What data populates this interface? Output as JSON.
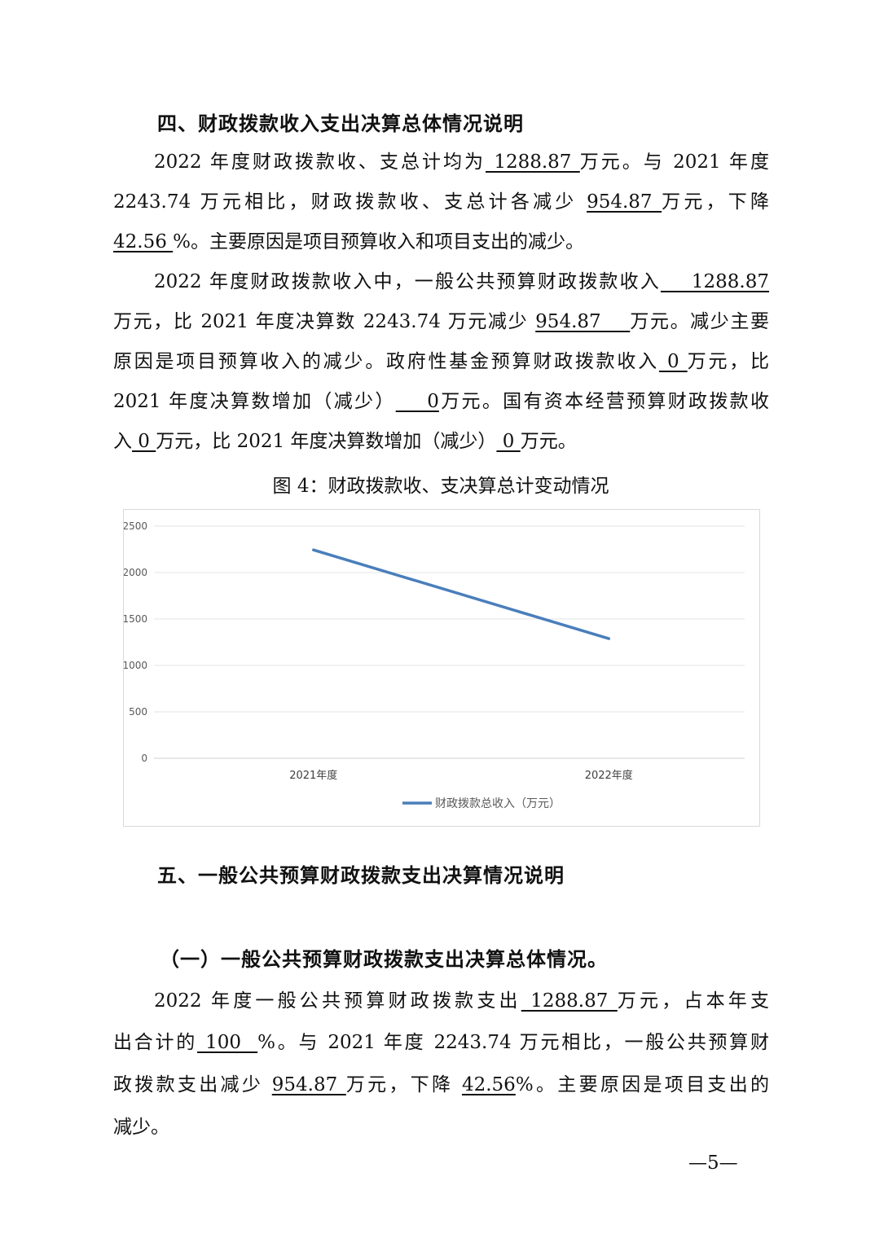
{
  "section4": {
    "heading": "四、财政拨款收入支出决算总体情况说明",
    "paragraphs": [
      [
        [
          {
            "t": "2022 年度财政拨款收、支总计均为"
          },
          {
            "t": " 1288.87 ",
            "u": true
          },
          {
            "t": "万元。与 2021 年度"
          }
        ],
        [
          {
            "t": "2243.74 万元相比，财政拨款收、支总计各减少 "
          },
          {
            "t": "954.87 ",
            "u": true
          },
          {
            "t": "万元，下降"
          }
        ],
        [
          {
            "t": "42.56 ",
            "u": true
          },
          {
            "t": "%。主要原因是项目预算收入和项目支出的减少。"
          }
        ]
      ],
      [
        [
          {
            "t": "2022 年度财政拨款收入中，一般公共预算财政拨款收入"
          },
          {
            "t": "    1288.87",
            "u": true
          }
        ],
        [
          {
            "t": "万元，比 2021 年度决算数 2243.74 万元减少 "
          },
          {
            "t": "954.87    ",
            "u": true
          },
          {
            "t": "万元。减少主要"
          }
        ],
        [
          {
            "t": "原因是项目预算收入的减少。政府性基金预算财政拨款收入"
          },
          {
            "t": " 0 ",
            "u": true
          },
          {
            "t": "万元，比"
          }
        ],
        [
          {
            "t": "2021 年度决算数增加（减少）"
          },
          {
            "t": "    0",
            "u": true
          },
          {
            "t": "万元。国有资本经营预算财政拨款收"
          }
        ],
        [
          {
            "t": "入"
          },
          {
            "t": " 0 ",
            "u": true
          },
          {
            "t": "万元，比 2021 年度决算数增加（减少）"
          },
          {
            "t": " 0 ",
            "u": true
          },
          {
            "t": "万元。"
          }
        ]
      ]
    ],
    "figure_caption": "图 4：财政拨款收、支决算总计变动情况"
  },
  "chart_data": {
    "type": "line",
    "categories": [
      "2021年度",
      "2022年度"
    ],
    "series": [
      {
        "name": "财政拨款总收入（万元）",
        "values": [
          2243.74,
          1288.87
        ],
        "color": "#4a7ebb"
      }
    ],
    "yticks": [
      0,
      500,
      1000,
      1500,
      2000,
      2500
    ],
    "ylim": [
      0,
      2500
    ],
    "grid": true,
    "legend_position": "bottom"
  },
  "section5": {
    "heading": "五、一般公共预算财政拨款支出决算情况说明",
    "subheading": "（一）一般公共预算财政拨款支出决算总体情况。",
    "paragraphs": [
      [
        [
          {
            "t": "2022 年度一般公共预算财政拨款支出"
          },
          {
            "t": " 1288.87 ",
            "u": true
          },
          {
            "t": "万元，占本年支"
          }
        ],
        [
          {
            "t": "出合计的"
          },
          {
            "t": " 100  ",
            "u": true
          },
          {
            "t": "%。与 2021 年度 2243.74 万元相比，一般公共预算财"
          }
        ],
        [
          {
            "t": "政拨款支出减少 "
          },
          {
            "t": "954.87 ",
            "u": true
          },
          {
            "t": "万元，下降 "
          },
          {
            "t": "42.56",
            "u": true
          },
          {
            "t": "%。主要原因是项目支出的"
          }
        ],
        [
          {
            "t": "减少。"
          }
        ]
      ]
    ]
  },
  "page_number": "—5—"
}
